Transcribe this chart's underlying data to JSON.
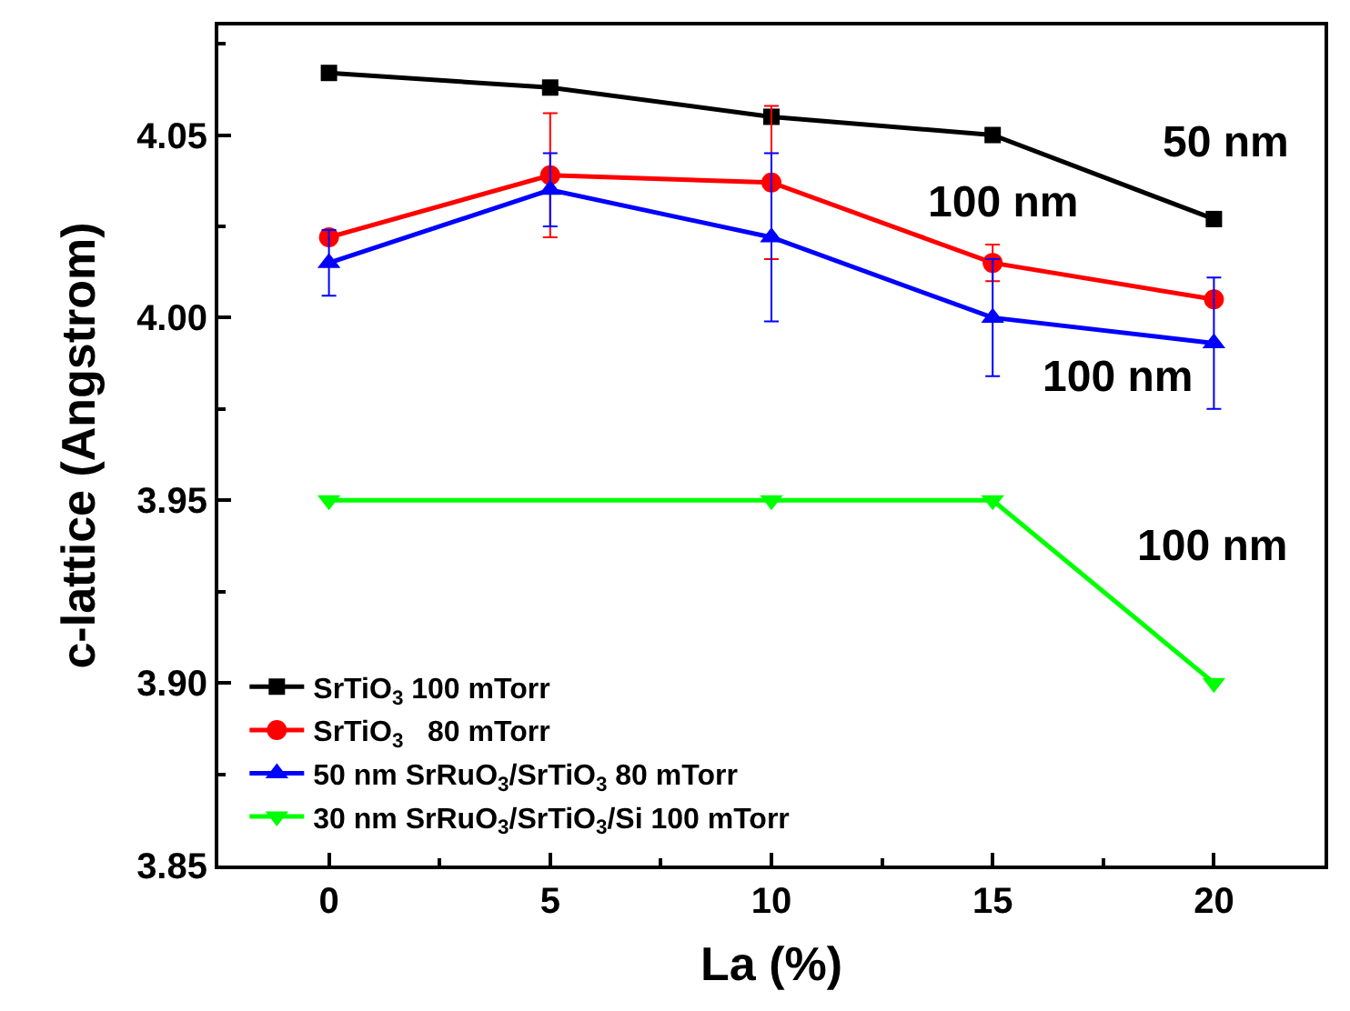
{
  "chart_data": {
    "type": "line",
    "xlabel": "La (%)",
    "ylabel": "c-lattice (Angstrom)",
    "x": [
      0,
      5,
      10,
      15,
      20
    ],
    "series": [
      {
        "name": "SrTiO$_{3}$ 100 mTorr",
        "color": "#000000",
        "marker": "square",
        "values": [
          4.067,
          4.063,
          4.055,
          4.05,
          4.027
        ]
      },
      {
        "name": "SrTiO$_{3}$   80 mTorr",
        "color": "#ff0000",
        "marker": "circle",
        "values": [
          4.022,
          4.039,
          4.037,
          4.015,
          4.005
        ],
        "errors": [
          null,
          0.017,
          0.021,
          0.005,
          null
        ]
      },
      {
        "name": "50 nm SrRuO$_{3}$/SrTiO$_{3}$ 80 mTorr",
        "color": "#0000ff",
        "marker": "triangle",
        "values": [
          4.015,
          4.035,
          4.022,
          4.0,
          3.993
        ],
        "errors": [
          0.009,
          0.01,
          0.023,
          0.016,
          0.018
        ]
      },
      {
        "name": "30 nm SrRuO$_{3}$/SrTiO$_{3}$/Si 100 mTorr",
        "color": "#00ff00",
        "marker": "triangle-down",
        "x": [
          0,
          10,
          15,
          20
        ],
        "values": [
          3.95,
          3.95,
          3.95,
          3.9
        ]
      }
    ],
    "annotations": [
      "50 nm",
      "100 nm",
      "100 nm",
      "100 nm"
    ],
    "xlim": [
      -2.5,
      22.5
    ],
    "xticks": [
      0,
      5,
      10,
      15,
      20
    ],
    "ylim": [
      3.85,
      4.08
    ],
    "yticks": [
      {
        "value": 3.85,
        "label": "3.85"
      },
      {
        "value": 3.9,
        "label": "3.90"
      },
      {
        "value": 3.95,
        "label": "3.95"
      },
      {
        "value": 4.0,
        "label": "4.00"
      },
      {
        "value": 4.05,
        "label": "4.05"
      }
    ],
    "legend": "bottom left",
    "line_style": "solid"
  }
}
